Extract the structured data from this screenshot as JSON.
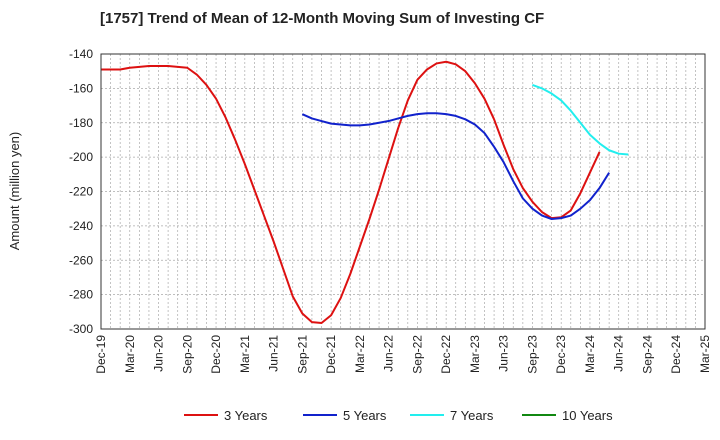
{
  "chart_data": {
    "type": "line",
    "title": "[1757]  Trend of Mean of 12-Month Moving Sum of Investing CF",
    "xlabel": "",
    "ylabel": "Amount (million yen)",
    "ylim": [
      -300,
      -140
    ],
    "yticks": [
      -140,
      -160,
      -180,
      -200,
      -220,
      -240,
      -260,
      -280,
      -300
    ],
    "x_ticks": [
      "Dec-19",
      "Mar-20",
      "Jun-20",
      "Sep-20",
      "Dec-20",
      "Mar-21",
      "Jun-21",
      "Sep-21",
      "Dec-21",
      "Mar-22",
      "Jun-22",
      "Sep-22",
      "Dec-22",
      "Mar-23",
      "Jun-23",
      "Sep-23",
      "Dec-23",
      "Mar-24",
      "Jun-24",
      "Sep-24",
      "Dec-24",
      "Mar-25"
    ],
    "grid": true,
    "legend_position": "bottom",
    "series": [
      {
        "name": "3 Years",
        "color": "#dd1111",
        "start_index": 0,
        "values": [
          -149,
          -149,
          -149,
          -148,
          -147.5,
          -147,
          -147,
          -147,
          -147.5,
          -148,
          -152,
          -158,
          -166,
          -177,
          -190,
          -204,
          -219,
          -234,
          -249,
          -265,
          -281,
          -291,
          -296,
          -296.5,
          -292,
          -282,
          -268,
          -252,
          -236,
          -219,
          -201,
          -183,
          -167,
          -155,
          -149,
          -145.5,
          -144.5,
          -146,
          -150,
          -157,
          -166,
          -178,
          -193,
          -207,
          -218,
          -226,
          -232,
          -235.5,
          -235,
          -231,
          -221,
          -209,
          -197
        ]
      },
      {
        "name": "5 Years",
        "color": "#1122cc",
        "start_index": 21,
        "values": [
          -175,
          -177.5,
          -179,
          -180.5,
          -181,
          -181.5,
          -181.5,
          -181,
          -180,
          -179,
          -177.5,
          -176,
          -175,
          -174.5,
          -174.5,
          -175,
          -176,
          -178,
          -181,
          -186,
          -194,
          -203,
          -214,
          -224,
          -230,
          -234,
          -236,
          -235.5,
          -234,
          -230,
          -225,
          -218,
          -209
        ]
      },
      {
        "name": "7 Years",
        "color": "#22eeee",
        "start_index": 45,
        "values": [
          -158,
          -160,
          -163,
          -167,
          -173,
          -180,
          -187,
          -192,
          -196,
          -198,
          -198.5
        ]
      },
      {
        "name": "10 Years",
        "color": "#118811",
        "start_index": 0,
        "values": []
      }
    ]
  }
}
